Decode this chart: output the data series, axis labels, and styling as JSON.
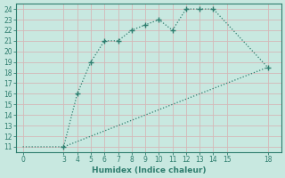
{
  "xlabel": "Humidex (Indice chaleur)",
  "line1_x": [
    3,
    4,
    5,
    6,
    7,
    8,
    9,
    10,
    11,
    12,
    13,
    14,
    18
  ],
  "line1_y": [
    11,
    16,
    19,
    21,
    21,
    22,
    22.5,
    23,
    22,
    24,
    24,
    24,
    18.5
  ],
  "line2_x": [
    0,
    3,
    18
  ],
  "line2_y": [
    11,
    11,
    18.5
  ],
  "color": "#2e7d6e",
  "bg_color": "#c8e8e0",
  "grid_color": "#b0d4cc",
  "xlim": [
    -0.5,
    19
  ],
  "ylim": [
    10.5,
    24.5
  ],
  "xticks": [
    0,
    3,
    4,
    5,
    6,
    7,
    8,
    9,
    10,
    11,
    12,
    13,
    14,
    15,
    18
  ],
  "yticks": [
    11,
    12,
    13,
    14,
    15,
    16,
    17,
    18,
    19,
    20,
    21,
    22,
    23,
    24
  ],
  "xlabel_fontsize": 6.5,
  "tick_fontsize": 5.5
}
